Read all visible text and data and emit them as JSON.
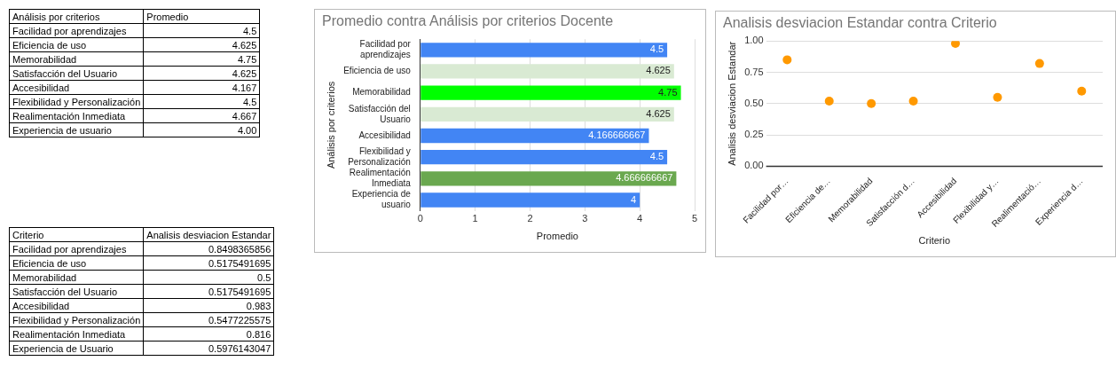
{
  "chart_data": [
    {
      "type": "other",
      "annotations": [
        "Análisis por criterios",
        "Promedio",
        "Facilidad por aprendizajes",
        "4.5",
        "Eficiencia de uso",
        "4.625",
        "Memorabilidad",
        "4.75",
        "Satisfacción del Usuario",
        "4.625",
        "Accesibilidad",
        "4.167",
        "Flexibilidad y Personalización",
        "4.5",
        "Realimentación Inmediata",
        "4.667",
        "Experiencia de usuario",
        "4.00"
      ]
    },
    {
      "type": "bar",
      "orientation": "horizontal",
      "title": "Promedio contra Análisis por criterios Docente",
      "xlabel": "Promedio",
      "ylabel": "Análisis por criterios",
      "categories": [
        "Facilidad por aprendizajes",
        "Eficiencia de uso",
        "Memorabilidad",
        "Satisfacción del Usuario",
        "Accesibilidad",
        "Flexibilidad y Personalización",
        "Realimentación Inmediata",
        "Experiencia de usuario"
      ],
      "values": [
        4.5,
        4.625,
        4.75,
        4.625,
        4.166666667,
        4.5,
        4.666666667,
        4
      ],
      "colors": [
        "#4285f4",
        "#d9ead3",
        "#00ff00",
        "#d9ead3",
        "#4285f4",
        "#4285f4",
        "#6aa84f",
        "#4285f4"
      ],
      "xlim": [
        0,
        5
      ],
      "xticks": [
        0,
        1,
        2,
        3,
        4,
        5
      ],
      "grid": "x",
      "data_labels": true,
      "legend": false
    },
    {
      "type": "scatter",
      "title": "Analisis desviacion Estandar contra Criterio",
      "xlabel": "Criterio",
      "ylabel": "Analisis desviacion Estandar",
      "categories": [
        "Facilidad por…",
        "Eficiencia de…",
        "Memorabilidad",
        "Satisfacción d…",
        "Accesibilidad",
        "Flexibilidad y…",
        "Realimentació…",
        "Experiencia d…"
      ],
      "values": [
        0.85,
        0.52,
        0.5,
        0.52,
        0.98,
        0.55,
        0.82,
        0.6
      ],
      "color": "#ff9900",
      "marker": "circle",
      "ylim": [
        0,
        1
      ],
      "yticks": [
        {
          "value": 0,
          "label": "0.00"
        },
        {
          "value": 0.25,
          "label": "0.25"
        },
        {
          "value": 0.5,
          "label": "0.50"
        },
        {
          "value": 0.75,
          "label": "0.75"
        },
        {
          "value": 1,
          "label": "1.00"
        }
      ],
      "grid": "y",
      "legend": false
    },
    {
      "type": "other",
      "annotations": [
        "Criterio",
        "Analisis desviacion Estandar",
        "Facilidad por aprendizajes",
        "0.8498365856",
        "Eficiencia de uso",
        "0.5175491695",
        "Memorabilidad",
        "0.5",
        "Satisfacción del Usuario",
        "0.5175491695",
        "Accesibilidad",
        "0.983",
        "Flexibilidad y Personalización",
        "0.5477225575",
        "Realimentación Inmediata",
        "0.816",
        "Experiencia de Usuario",
        "0.5976143047"
      ]
    }
  ]
}
